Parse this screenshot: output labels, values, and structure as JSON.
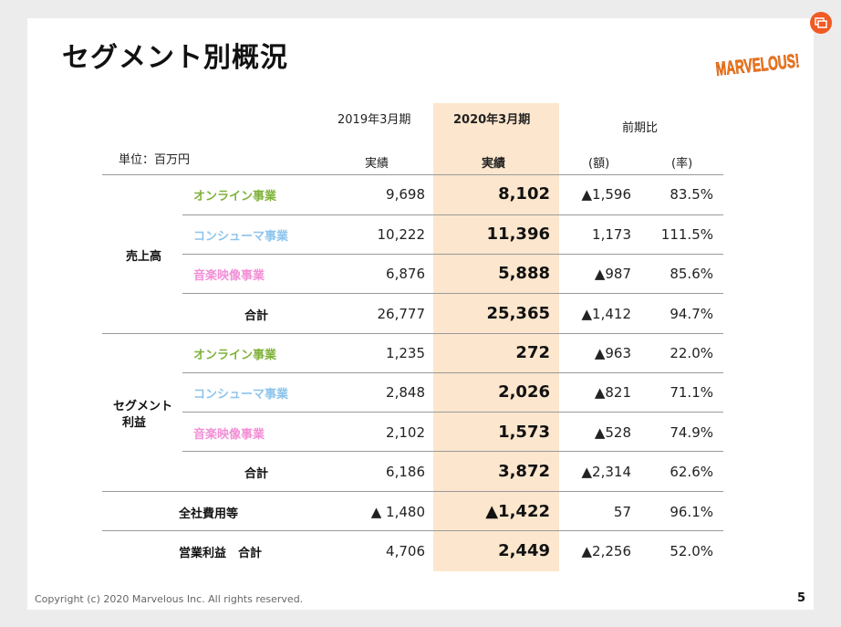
{
  "title": "セグメント別概況",
  "logo_text": "MARVELOUS!",
  "colors": {
    "accent": "#f05a24",
    "highlight": "#fce6cd",
    "online": "#7fb23a",
    "consumer": "#8ec4ec",
    "music": "#f28fd6"
  },
  "header": {
    "col2019": "2019年3月期",
    "col2020": "2020年3月期",
    "yoy": "前期比",
    "unit": "単位：百万円",
    "actual_2019": "実績",
    "actual_2020": "実績",
    "amount": "(額)",
    "rate": "(率)"
  },
  "groups": {
    "sales": "売上高",
    "segment_profit_l1": "セグメント",
    "segment_profit_l2": "利益"
  },
  "rows": [
    {
      "label": "オンライン事業",
      "v2019": "9,698",
      "v2020": "8,102",
      "diff": "▲1,596",
      "rate": "83.5%"
    },
    {
      "label": "コンシューマ事業",
      "v2019": "10,222",
      "v2020": "11,396",
      "diff": "1,173",
      "rate": "111.5%"
    },
    {
      "label": "音楽映像事業",
      "v2019": "6,876",
      "v2020": "5,888",
      "diff": "▲987",
      "rate": "85.6%"
    },
    {
      "label": "合計",
      "v2019": "26,777",
      "v2020": "25,365",
      "diff": "▲1,412",
      "rate": "94.7%"
    },
    {
      "label": "オンライン事業",
      "v2019": "1,235",
      "v2020": "272",
      "diff": "▲963",
      "rate": "22.0%"
    },
    {
      "label": "コンシューマ事業",
      "v2019": "2,848",
      "v2020": "2,026",
      "diff": "▲821",
      "rate": "71.1%"
    },
    {
      "label": "音楽映像事業",
      "v2019": "2,102",
      "v2020": "1,573",
      "diff": "▲528",
      "rate": "74.9%"
    },
    {
      "label": "合計",
      "v2019": "6,186",
      "v2020": "3,872",
      "diff": "▲2,314",
      "rate": "62.6%"
    },
    {
      "label": "全社費用等",
      "v2019": "▲ 1,480",
      "v2020": "▲1,422",
      "diff": "57",
      "rate": "96.1%"
    },
    {
      "label": "営業利益　合計",
      "v2019": "4,706",
      "v2020": "2,449",
      "diff": "▲2,256",
      "rate": "52.0%"
    }
  ],
  "footer": "Copyright (c) 2020 Marvelous Inc. All rights reserved.",
  "page_number": "5"
}
